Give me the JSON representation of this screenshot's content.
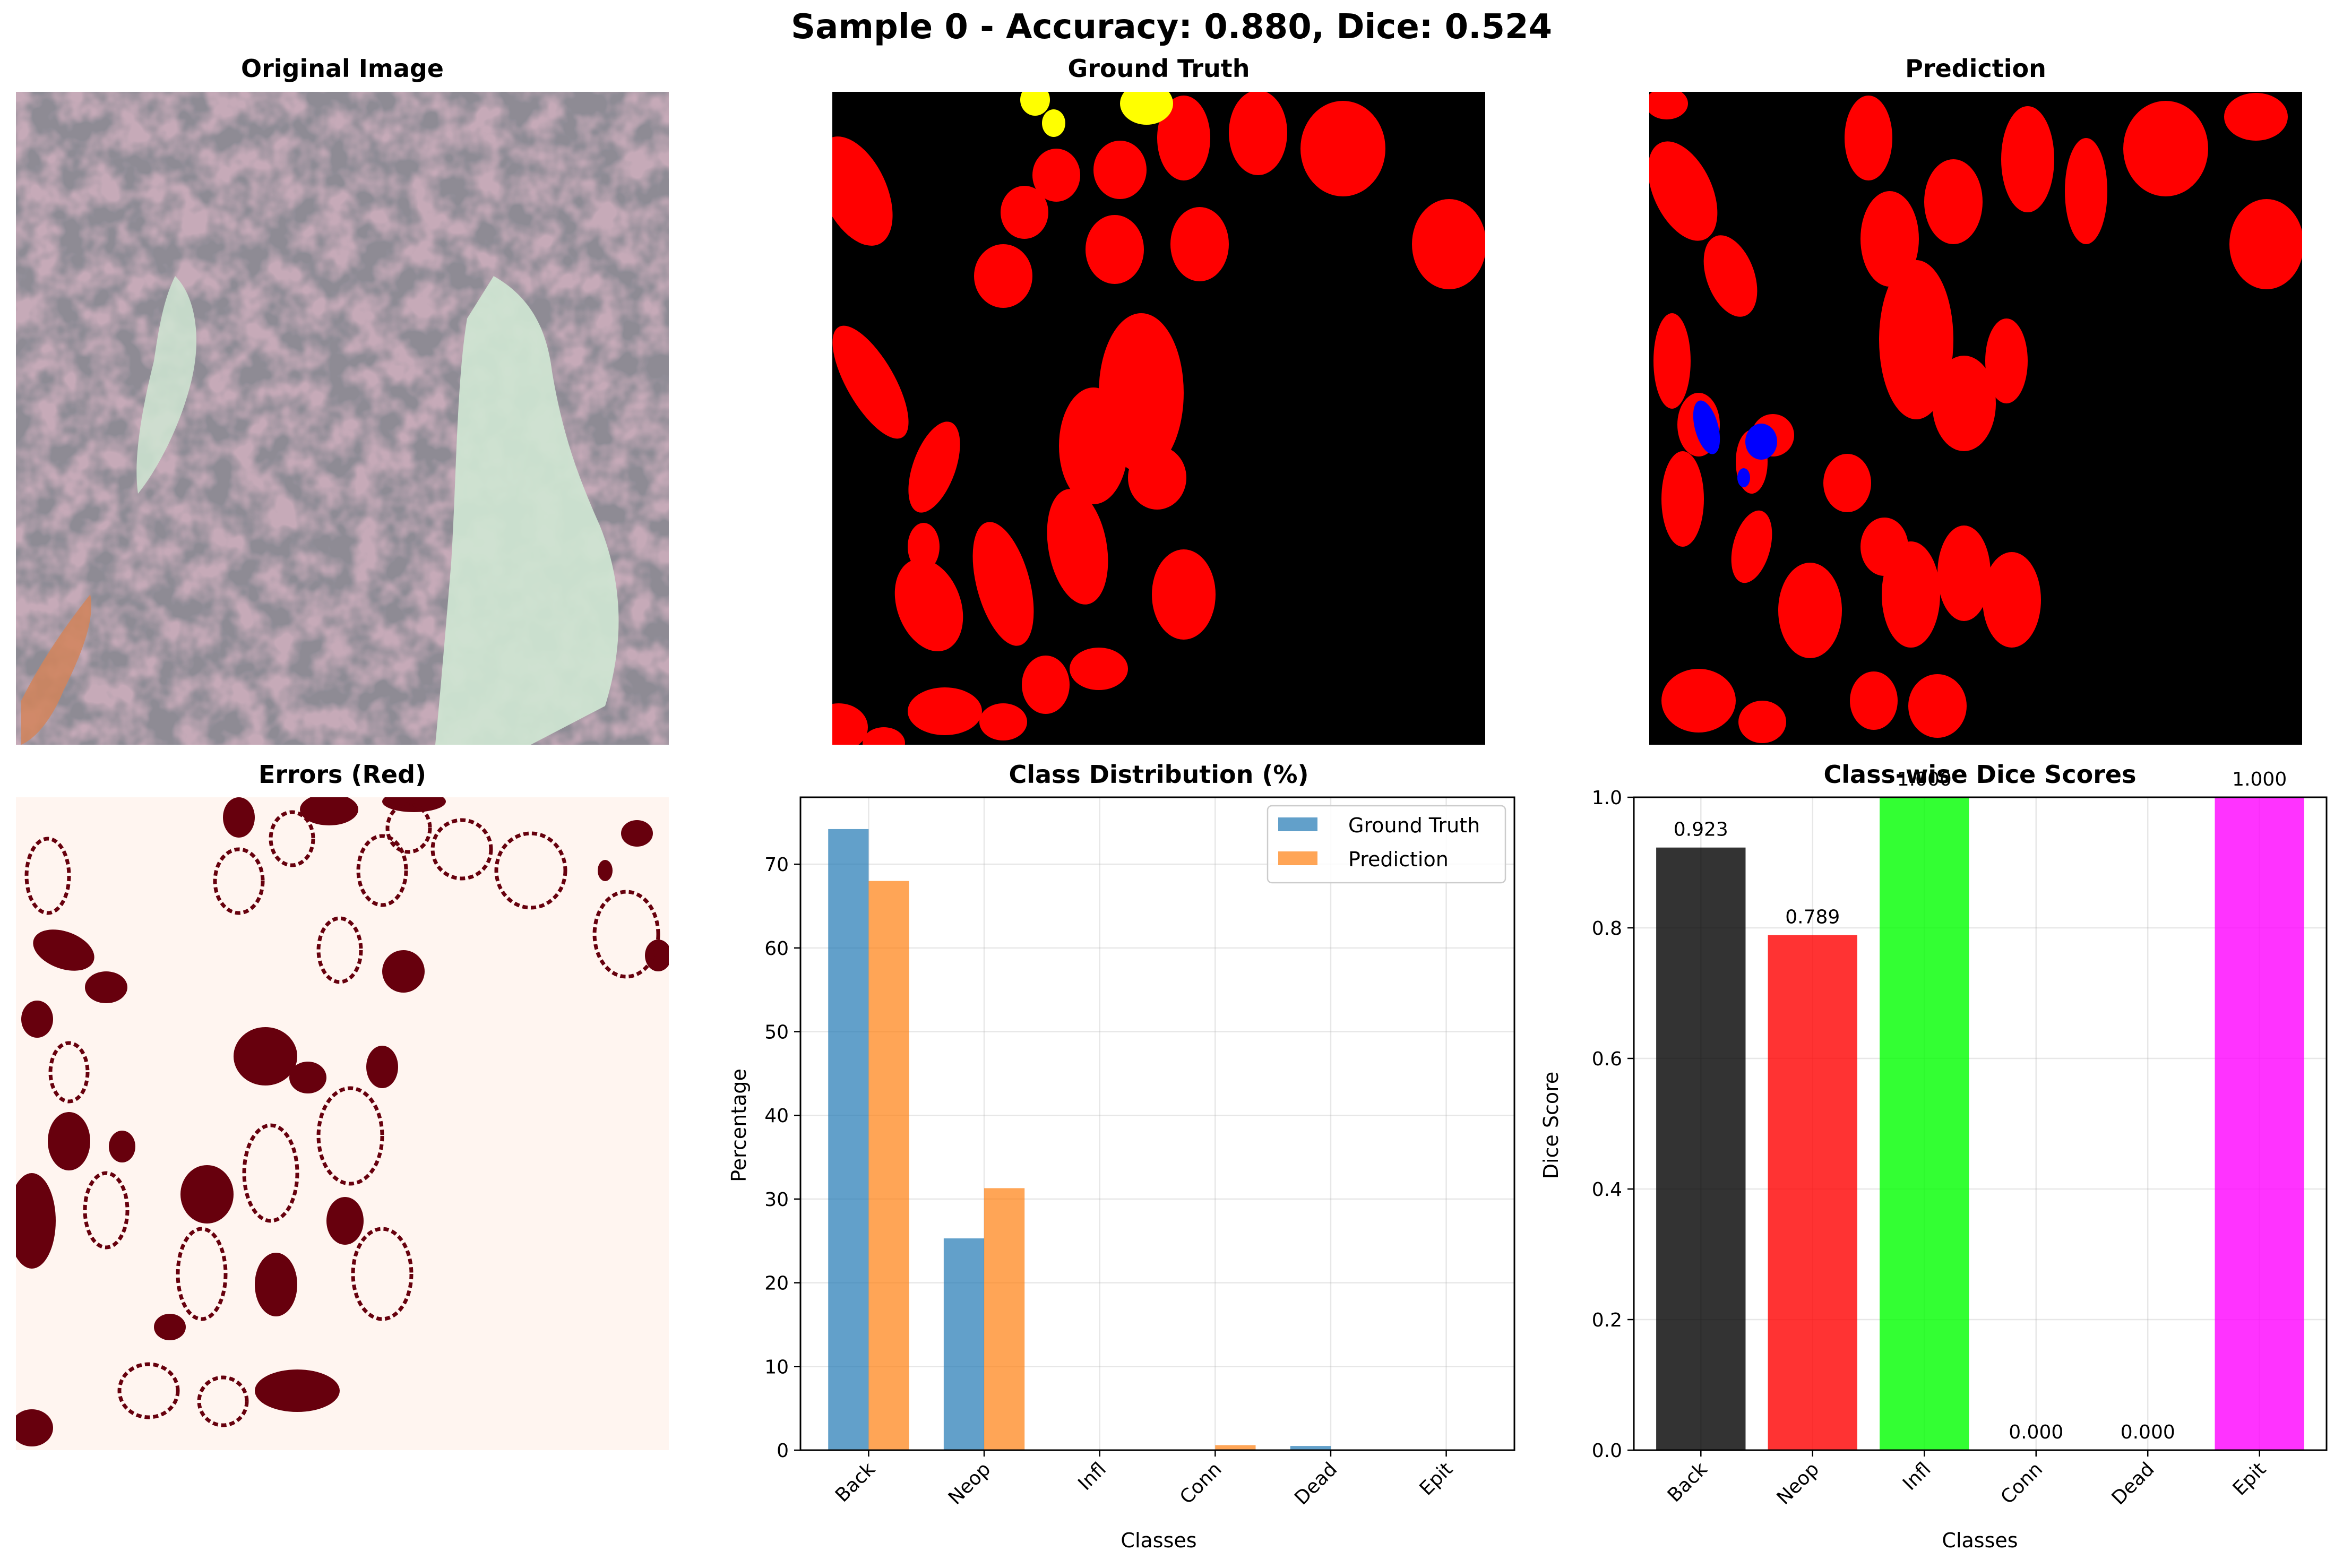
{
  "suptitle": "Sample 0 - Accuracy: 0.880, Dice: 0.524",
  "panels": {
    "original": {
      "title": "Original Image"
    },
    "ground_truth": {
      "title": "Ground Truth"
    },
    "prediction": {
      "title": "Prediction"
    },
    "errors": {
      "title": "Errors (Red)"
    }
  },
  "colors": {
    "background_class": "#000000",
    "neoplastic": "#ff0000",
    "inflammatory": "#0000ff",
    "dead": "#ffff00",
    "error": "#67000d",
    "error_bg": "#fff5f0",
    "gt_bar": "#1f77b4",
    "pred_bar": "#ff7f0e"
  },
  "chart_data": [
    {
      "type": "bar",
      "title": "Class Distribution (%)",
      "xlabel": "Classes",
      "ylabel": "Percentage",
      "categories": [
        "Back",
        "Neop",
        "Infl",
        "Conn",
        "Dead",
        "Epit"
      ],
      "series": [
        {
          "name": "Ground Truth",
          "color": "#1f77b4",
          "values": [
            74.2,
            25.3,
            0.0,
            0.0,
            0.5,
            0.0
          ]
        },
        {
          "name": "Prediction",
          "color": "#ff7f0e",
          "values": [
            68.0,
            31.3,
            0.0,
            0.6,
            0.0,
            0.0
          ]
        }
      ],
      "ylim": [
        0,
        78
      ],
      "yticks": [
        0,
        10,
        20,
        30,
        40,
        50,
        60,
        70
      ],
      "grid": true,
      "legend": "top-right"
    },
    {
      "type": "bar",
      "title": "Class-wise Dice Scores",
      "xlabel": "Classes",
      "ylabel": "Dice Score",
      "categories": [
        "Back",
        "Neop",
        "Infl",
        "Conn",
        "Dead",
        "Epit"
      ],
      "values": [
        0.923,
        0.789,
        1.0,
        0.0,
        0.0,
        1.0
      ],
      "labels": [
        "0.923",
        "0.789",
        "1.000",
        "0.000",
        "0.000",
        "1.000"
      ],
      "colors": [
        "#000000",
        "#ff0000",
        "#00ff00",
        "#00ffff",
        "#ffff00",
        "#ff00ff"
      ],
      "ylim": [
        0,
        1.0
      ],
      "yticks": [
        "0.0",
        "0.2",
        "0.4",
        "0.6",
        "0.8",
        "1.0"
      ],
      "grid": true
    }
  ]
}
